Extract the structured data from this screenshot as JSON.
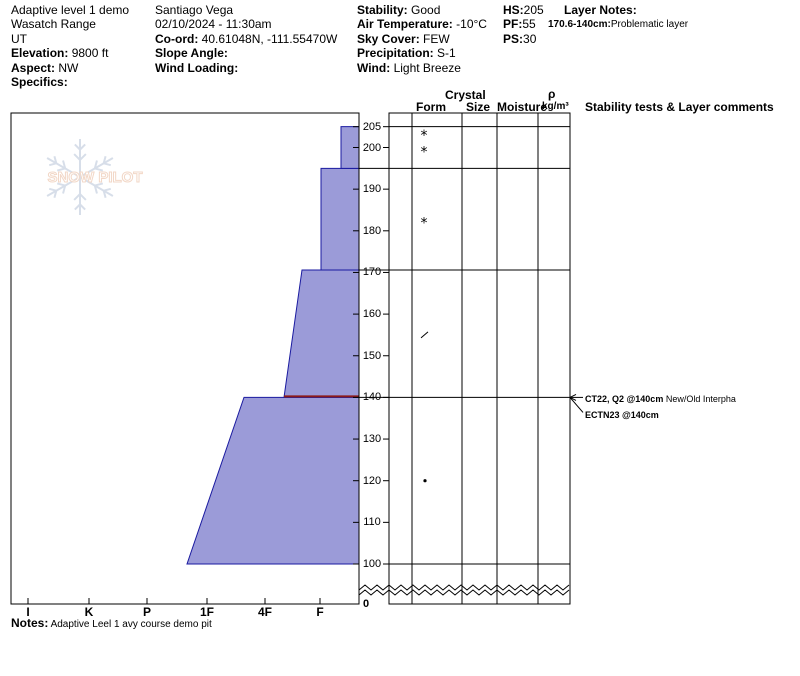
{
  "header": {
    "col1": {
      "title": "Adaptive level 1 demo",
      "range": "Wasatch Range",
      "state": "UT",
      "elevation_label": "Elevation:",
      "elevation_value": "9800 ft",
      "aspect_label": "Aspect:",
      "aspect_value": "NW",
      "specifics_label": "Specifics:",
      "specifics_value": ""
    },
    "col2": {
      "observer": "Santiago  Vega",
      "datetime": "02/10/2024 - 11:30am",
      "coord_label": "Co-ord:",
      "coord_value": "40.61048N, -111.55470W",
      "slope_label": "Slope Angle:",
      "slope_value": "",
      "wind_loading_label": "Wind Loading:",
      "wind_loading_value": ""
    },
    "col3": {
      "stability_label": "Stability:",
      "stability_value": "Good",
      "air_temp_label": "Air Temperature:",
      "air_temp_value": "-10°C",
      "sky_label": "Sky Cover:",
      "sky_value": "FEW",
      "precip_label": "Precipitation:",
      "precip_value": "S-1",
      "wind_label": "Wind:",
      "wind_value": "Light Breeze"
    },
    "col4": {
      "hs_label": "HS:",
      "hs_value": "205",
      "pf_label": "PF:",
      "pf_value": "55",
      "ps_label": "PS:",
      "ps_value": "30"
    },
    "layer_notes": {
      "title": "Layer Notes:",
      "range": "170.6-140cm:",
      "text": "Problematic layer"
    }
  },
  "watermark": {
    "text": "SNOW PILOT"
  },
  "columns": {
    "form": "Form",
    "crystal": "Crystal",
    "size": "Size",
    "moisture": "Moisture",
    "rho": "ρ",
    "density_unit": "kg/m³",
    "stability_comments": "Stability tests & Layer comments"
  },
  "hardness_axis": [
    "I",
    "K",
    "P",
    "1F",
    "4F",
    "F"
  ],
  "depth_axis": {
    "labels": [
      "205",
      "200",
      "190",
      "180",
      "170",
      "160",
      "150",
      "140",
      "130",
      "120",
      "110",
      "100",
      "0"
    ],
    "ticks": [
      205,
      200,
      190,
      180,
      170,
      160,
      150,
      140,
      130,
      120,
      110,
      100
    ]
  },
  "profile": {
    "layers": [
      {
        "top": 205,
        "bottom": 195,
        "hardness": "F"
      },
      {
        "top": 195,
        "bottom": 170.6,
        "hardness": "F"
      },
      {
        "top": 170.6,
        "bottom": 140,
        "hardness": "4F-F"
      },
      {
        "top": 140,
        "bottom": 100,
        "hardness": "1F-4F"
      }
    ],
    "weak_layer_depth": 140,
    "colors": {
      "fill": "#9b9bd8",
      "outline": "#1a1aa0",
      "weak_layer": "#8b1a1a"
    }
  },
  "grain_forms": [
    {
      "depth": 203,
      "symbol": "*"
    },
    {
      "depth": 199,
      "symbol": "*"
    },
    {
      "depth": 182,
      "symbol": "*"
    },
    {
      "depth": 155,
      "symbol": "/"
    },
    {
      "depth": 120,
      "symbol": "•"
    }
  ],
  "stability_tests": [
    {
      "bold": "CT22, Q2 @140cm",
      "text": " New/Old Interpha"
    },
    {
      "bold": "ECTN23 @140cm",
      "text": ""
    }
  ],
  "notes": {
    "label": "Notes:",
    "text": "Adaptive Leel 1 avy course demo pit"
  }
}
